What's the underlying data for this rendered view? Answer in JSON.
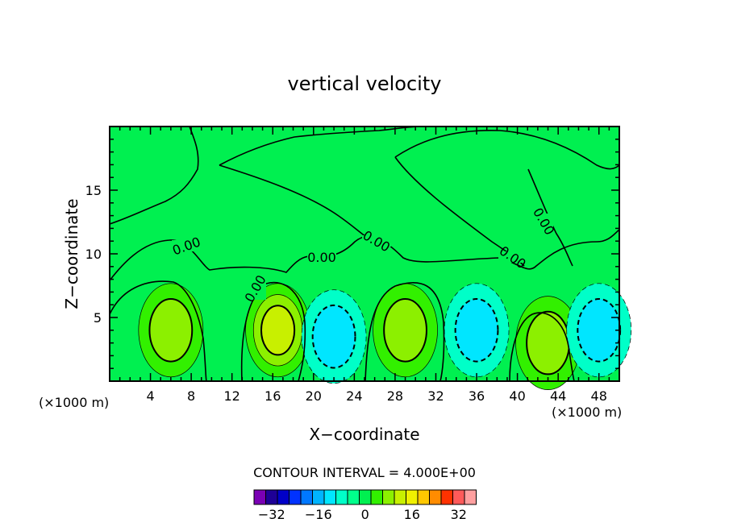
{
  "chart_data": {
    "type": "heatmap",
    "title": "vertical velocity",
    "xlabel": "X−coordinate",
    "ylabel": "Z−coordinate",
    "x_unit_left": "(×1000 m)",
    "x_unit_right": "(×1000 m)",
    "xlim": [
      0,
      50
    ],
    "ylim": [
      0,
      20
    ],
    "x_ticks": [
      4,
      8,
      12,
      16,
      20,
      24,
      28,
      32,
      36,
      40,
      44,
      48
    ],
    "y_ticks": [
      5,
      10,
      15
    ],
    "contour_interval_text": "CONTOUR INTERVAL = 4.000E+00",
    "contour_labels": [
      "0.00",
      "0.00",
      "0.00",
      "0.00",
      "0.00",
      "0.00"
    ],
    "colorbar": {
      "levels": [
        -36,
        -32,
        -28,
        -24,
        -20,
        -16,
        -12,
        -8,
        -4,
        0,
        4,
        8,
        12,
        16,
        20,
        24,
        28,
        32,
        36
      ],
      "tick_labels": [
        "−32",
        "−16",
        "0",
        "16",
        "32"
      ],
      "tick_values": [
        -32,
        -16,
        0,
        16,
        32
      ],
      "colors": [
        "#7a00b4",
        "#1e0096",
        "#0000c8",
        "#0032ff",
        "#0078ff",
        "#00b4ff",
        "#00e6ff",
        "#00ffc8",
        "#00ff8c",
        "#00f050",
        "#32f000",
        "#8cf000",
        "#c8f000",
        "#f0f000",
        "#ffc800",
        "#ff8c00",
        "#ff3200",
        "#ff5a5a",
        "#ffa0a0"
      ]
    },
    "features": [
      {
        "x": 6,
        "z": 4,
        "w": 8
      },
      {
        "x": 16.5,
        "z": 4,
        "w": 14
      },
      {
        "x": 29,
        "z": 4,
        "w": 10
      },
      {
        "x": 43,
        "z": 3,
        "w": 8
      },
      {
        "x": 11,
        "z": 4,
        "w": -3
      },
      {
        "x": 22,
        "z": 3.5,
        "w": -9
      },
      {
        "x": 36,
        "z": 4,
        "w": -11
      },
      {
        "x": 48,
        "z": 4,
        "w": -8
      }
    ]
  }
}
